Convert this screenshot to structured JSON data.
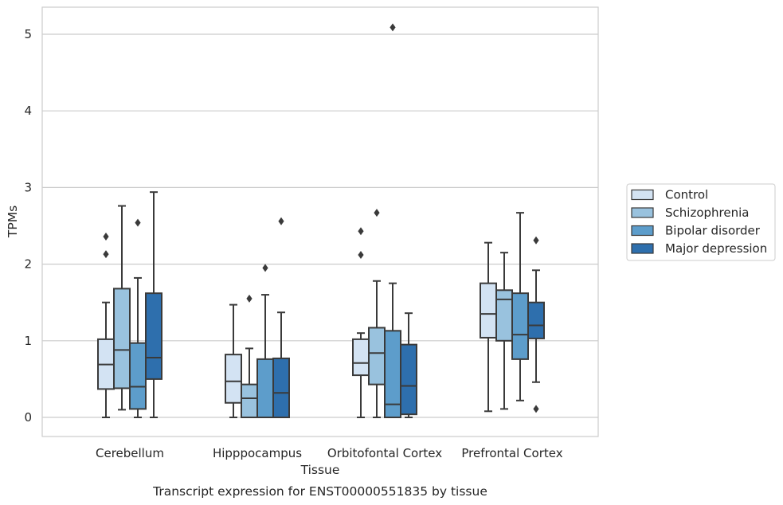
{
  "chart_data": {
    "type": "boxplot",
    "title": "Transcript expression for ENST00000551835 by tissue",
    "xlabel": "Tissue",
    "ylabel": "TPMs",
    "ylim": [
      -0.25,
      5.35
    ],
    "yticks": [
      0,
      1,
      2,
      3,
      4,
      5
    ],
    "grid": "horizontal",
    "legend_position": "right",
    "categories": [
      "Cerebellum",
      "Hipppocampus",
      "Orbitofontal Cortex",
      "Prefrontal Cortex"
    ],
    "series": [
      {
        "name": "Control",
        "color": "#d3e3f3",
        "boxes": [
          {
            "whislo": 0.0,
            "q1": 0.37,
            "med": 0.69,
            "q3": 1.02,
            "whishi": 1.5,
            "fliers": [
              2.13,
              2.36
            ]
          },
          {
            "whislo": 0.0,
            "q1": 0.19,
            "med": 0.47,
            "q3": 0.82,
            "whishi": 1.47,
            "fliers": []
          },
          {
            "whislo": 0.0,
            "q1": 0.55,
            "med": 0.71,
            "q3": 1.02,
            "whishi": 1.1,
            "fliers": [
              2.12,
              2.43
            ]
          },
          {
            "whislo": 0.08,
            "q1": 1.04,
            "med": 1.35,
            "q3": 1.75,
            "whishi": 2.28,
            "fliers": []
          }
        ]
      },
      {
        "name": "Schizophrenia",
        "color": "#99c2de",
        "boxes": [
          {
            "whislo": 0.1,
            "q1": 0.38,
            "med": 0.88,
            "q3": 1.68,
            "whishi": 2.76,
            "fliers": []
          },
          {
            "whislo": 0.0,
            "q1": 0.0,
            "med": 0.25,
            "q3": 0.43,
            "whishi": 0.9,
            "fliers": [
              1.55
            ]
          },
          {
            "whislo": 0.0,
            "q1": 0.43,
            "med": 0.84,
            "q3": 1.17,
            "whishi": 1.78,
            "fliers": [
              2.67
            ]
          },
          {
            "whislo": 0.11,
            "q1": 1.0,
            "med": 1.54,
            "q3": 1.66,
            "whishi": 2.15,
            "fliers": []
          }
        ]
      },
      {
        "name": "Bipolar disorder",
        "color": "#5d9dcb",
        "boxes": [
          {
            "whislo": 0.0,
            "q1": 0.11,
            "med": 0.4,
            "q3": 0.97,
            "whishi": 1.82,
            "fliers": [
              2.54
            ]
          },
          {
            "whislo": 0.0,
            "q1": 0.0,
            "med": 0.0,
            "q3": 0.76,
            "whishi": 1.6,
            "fliers": [
              1.95
            ]
          },
          {
            "whislo": 0.0,
            "q1": 0.0,
            "med": 0.17,
            "q3": 1.13,
            "whishi": 1.75,
            "fliers": [
              5.09
            ]
          },
          {
            "whislo": 0.22,
            "q1": 0.76,
            "med": 1.08,
            "q3": 1.62,
            "whishi": 2.67,
            "fliers": []
          }
        ]
      },
      {
        "name": "Major depression",
        "color": "#2e6fad",
        "boxes": [
          {
            "whislo": 0.0,
            "q1": 0.5,
            "med": 0.78,
            "q3": 1.62,
            "whishi": 2.94,
            "fliers": []
          },
          {
            "whislo": 0.0,
            "q1": 0.0,
            "med": 0.32,
            "q3": 0.77,
            "whishi": 1.37,
            "fliers": [
              2.56
            ]
          },
          {
            "whislo": 0.0,
            "q1": 0.04,
            "med": 0.41,
            "q3": 0.95,
            "whishi": 1.36,
            "fliers": []
          },
          {
            "whislo": 0.46,
            "q1": 1.03,
            "med": 1.2,
            "q3": 1.5,
            "whishi": 1.92,
            "fliers": [
              0.11,
              2.31
            ]
          }
        ]
      }
    ]
  }
}
